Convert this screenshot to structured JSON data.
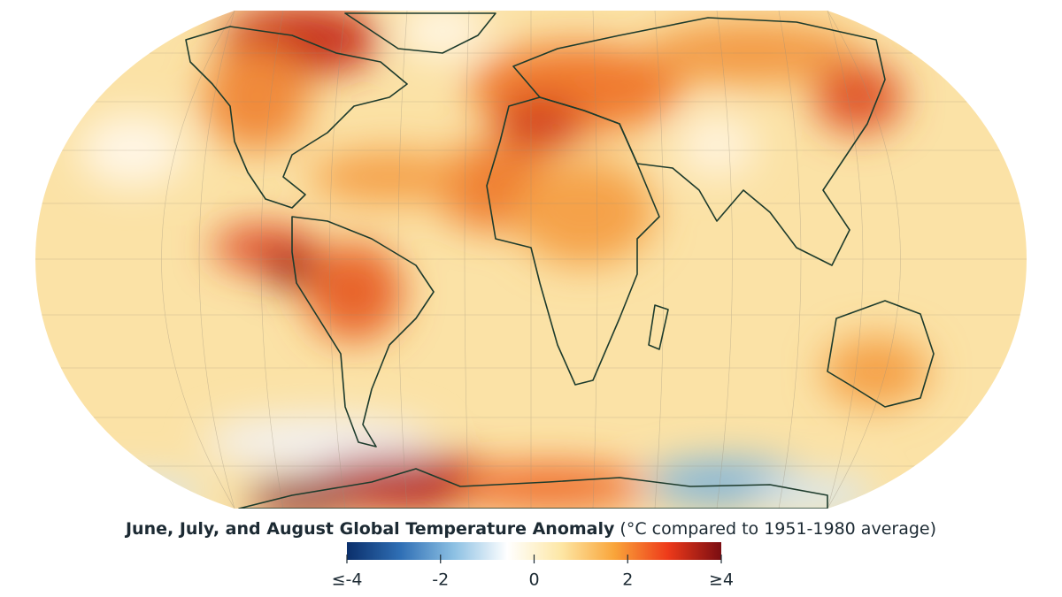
{
  "map": {
    "title": "June, July, and August Global Temperature Anomaly",
    "subtitle": "(°C compared to 1951-1980 average)",
    "colorbar": {
      "lim": [
        -4,
        4
      ],
      "ticks": [
        {
          "value": -4,
          "label": "≤-4"
        },
        -2,
        0,
        {
          "value": 2,
          "label": "2"
        },
        {
          "value": 4,
          "label": "≥4"
        }
      ],
      "colors": [
        "#0b2f6b",
        "#2f6fb5",
        "#8cc0e3",
        "#ffffff",
        "#fde7a6",
        "#f9a53a",
        "#ee3a1a",
        "#7a0d12"
      ]
    }
  }
}
